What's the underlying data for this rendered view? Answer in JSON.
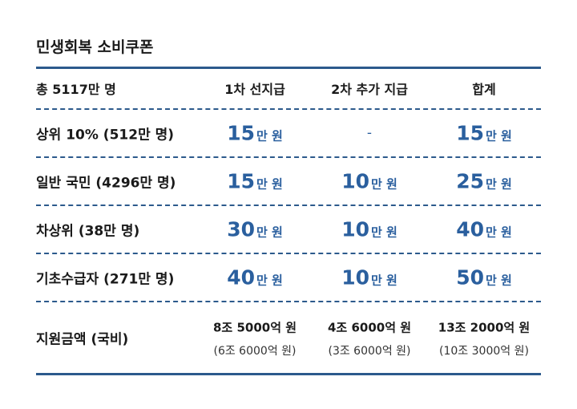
{
  "title": "민생회복 소비쿠폰",
  "table": {
    "header": [
      "총 5117만 명",
      "1차 선지급",
      "2차 추가 지급",
      "합계"
    ],
    "rows": [
      {
        "label": "상위 10% (512만 명)",
        "cells": [
          {
            "amount": "15",
            "unit": "만 원"
          },
          {
            "text": "-"
          },
          {
            "amount": "15",
            "unit": "만 원"
          }
        ]
      },
      {
        "label": "일반 국민 (4296만 명)",
        "cells": [
          {
            "amount": "15",
            "unit": "만 원"
          },
          {
            "amount": "10",
            "unit": "만 원"
          },
          {
            "amount": "25",
            "unit": "만 원"
          }
        ]
      },
      {
        "label": "차상위 (38만 명)",
        "cells": [
          {
            "amount": "30",
            "unit": "만 원"
          },
          {
            "amount": "10",
            "unit": "만 원"
          },
          {
            "amount": "40",
            "unit": "만 원"
          }
        ]
      },
      {
        "label": "기초수급자 (271만 명)",
        "cells": [
          {
            "amount": "40",
            "unit": "만 원"
          },
          {
            "amount": "10",
            "unit": "만 원"
          },
          {
            "amount": "50",
            "unit": "만 원"
          }
        ]
      }
    ],
    "total": {
      "label": "지원금액 (국비)",
      "cells": [
        {
          "main": "8조 5000억 원",
          "sub": "(6조 6000억 원)"
        },
        {
          "main": "4조 6000억 원",
          "sub": "(3조 6000억 원)"
        },
        {
          "main": "13조 2000억 원",
          "sub": "(10조 3000억 원)"
        }
      ]
    }
  }
}
